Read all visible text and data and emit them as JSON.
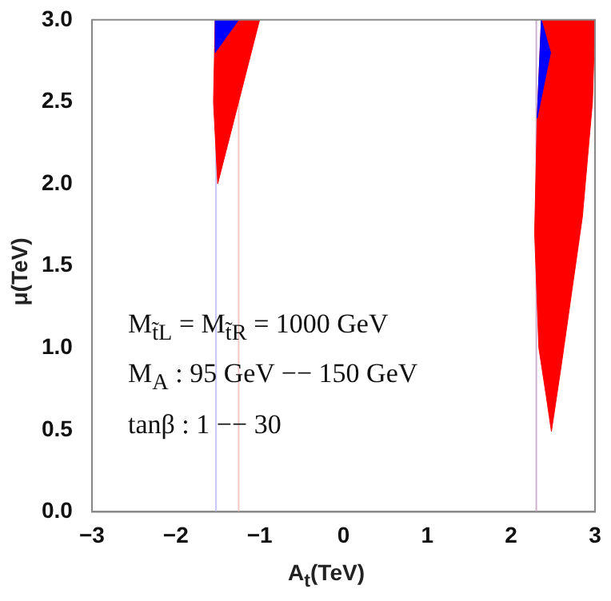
{
  "chart_data": {
    "type": "area",
    "xlabel": "A$_{t}$(TeV)",
    "ylabel": "μ(TeV)",
    "annotations": [
      "M$_{t̃L}$ = M$_{t̃R}$ = 1000 GeV",
      "M$_{A}$ : 95 GeV −− 150 GeV",
      "tanβ : 1 −−  30"
    ],
    "xlim": [
      -3,
      3
    ],
    "ylim": [
      0,
      3
    ],
    "xticks": [
      {
        "value": -3,
        "label": "−3"
      },
      {
        "value": -2,
        "label": "−2"
      },
      {
        "value": -1,
        "label": "−1"
      },
      0,
      1,
      2,
      3
    ],
    "yticks": [
      {
        "value": 0,
        "label": "0.0"
      },
      {
        "value": 0.5,
        "label": "0.5"
      },
      {
        "value": 1,
        "label": "1.0"
      },
      {
        "value": 1.5,
        "label": "1.5"
      },
      {
        "value": 2,
        "label": "2.0"
      },
      {
        "value": 2.5,
        "label": "2.5"
      },
      {
        "value": 3,
        "label": "3.0"
      }
    ],
    "grid": false,
    "legend": false,
    "ref_lines": [
      {
        "axis": "x",
        "value": -1.52,
        "color": "#c8c8f4"
      },
      {
        "axis": "x",
        "value": -1.25,
        "color": "#f0c8c8"
      },
      {
        "axis": "x",
        "value": 2.3,
        "color": "#d0b0d0"
      }
    ],
    "series": [
      {
        "color": "#ff0000",
        "x": [
          -1.53,
          -1.0,
          -1.5,
          -1.55,
          -1.53
        ],
        "values": [
          3.0,
          3.0,
          2.0,
          2.5,
          3.0
        ]
      },
      {
        "color": "#ff0000",
        "x": [
          2.36,
          3.0,
          2.97,
          2.85,
          2.6,
          2.48,
          2.42,
          2.33,
          2.28,
          2.31,
          2.36
        ],
        "values": [
          3.0,
          3.0,
          2.5,
          1.8,
          0.9,
          0.49,
          0.7,
          1.0,
          1.7,
          2.4,
          3.0
        ]
      },
      {
        "color": "#0000ff",
        "x": [
          -1.53,
          -1.25,
          -1.53,
          -1.53
        ],
        "values": [
          3.0,
          3.0,
          2.8,
          3.0
        ]
      },
      {
        "color": "#0000ff",
        "x": [
          2.36,
          2.47,
          2.31,
          2.36
        ],
        "values": [
          3.0,
          2.8,
          2.4,
          3.0
        ]
      }
    ]
  }
}
